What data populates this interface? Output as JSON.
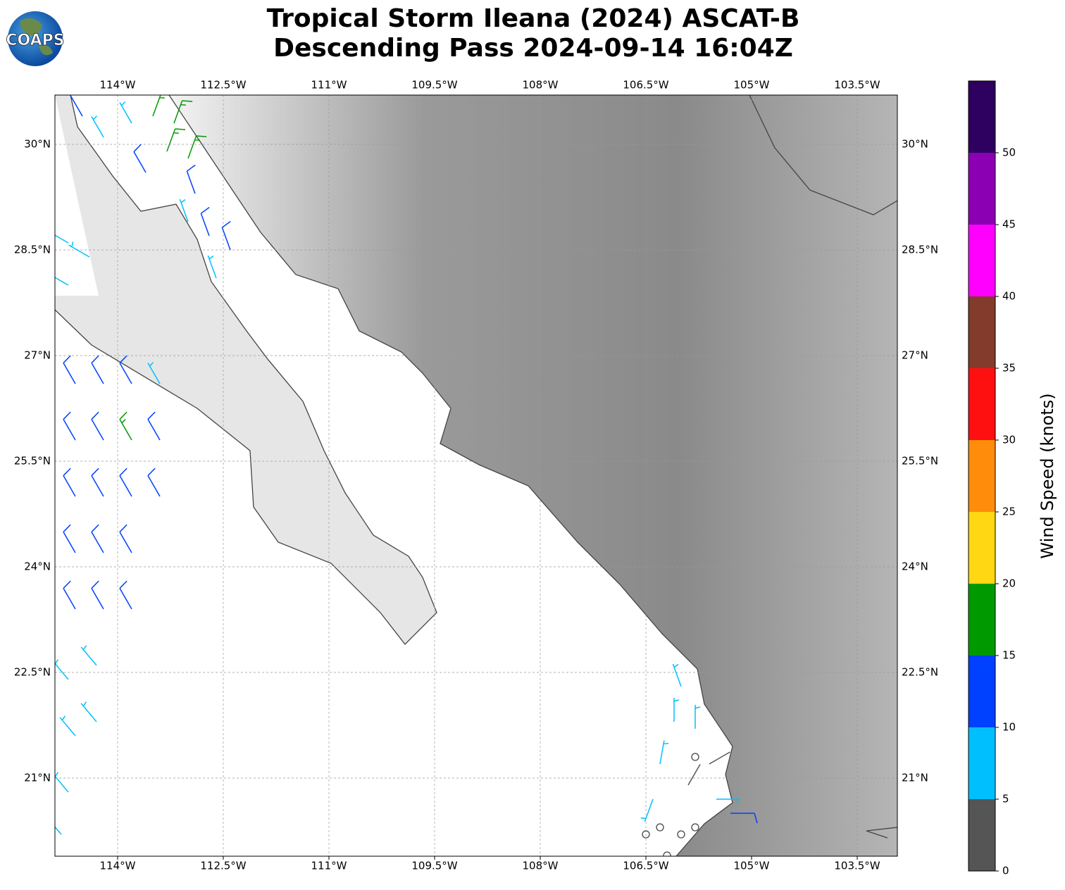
{
  "chart_data": {
    "type": "wind_barbs",
    "title": "Tropical Storm Ileana (2024) ASCAT-B",
    "subtitle": "Descending Pass 2024-09-14 16:04Z",
    "logo": "COAPS",
    "xlim": [
      -114.89,
      -102.93
    ],
    "ylim": [
      19.89,
      30.7
    ],
    "xticks": [
      {
        "value": -114,
        "label": "114°W"
      },
      {
        "value": -112.5,
        "label": "112.5°W"
      },
      {
        "value": -111,
        "label": "111°W"
      },
      {
        "value": -109.5,
        "label": "109.5°W"
      },
      {
        "value": -108,
        "label": "108°W"
      },
      {
        "value": -106.5,
        "label": "106.5°W"
      },
      {
        "value": -105,
        "label": "105°W"
      },
      {
        "value": -103.5,
        "label": "103.5°W"
      }
    ],
    "yticks": [
      {
        "value": 21,
        "label": "21°N"
      },
      {
        "value": 22.5,
        "label": "22.5°N"
      },
      {
        "value": 24,
        "label": "24°N"
      },
      {
        "value": 25.5,
        "label": "25.5°N"
      },
      {
        "value": 27,
        "label": "27°N"
      },
      {
        "value": 28.5,
        "label": "28.5°N"
      },
      {
        "value": 30,
        "label": "30°N"
      }
    ],
    "grid": true,
    "colorbar": {
      "label": "Wind Speed (knots)",
      "lim": [
        0,
        55
      ],
      "ticks": [
        0,
        5,
        10,
        15,
        20,
        25,
        30,
        35,
        40,
        45,
        50
      ],
      "colors": [
        "#555555",
        "#00bfff",
        "#0040ff",
        "#009900",
        "#ffd712",
        "#ff8c0a",
        "#ff1010",
        "#833b2b",
        "#ff00ff",
        "#8c00b4",
        "#2e0060"
      ]
    },
    "barbs": {
      "lon": [
        -114.5,
        -114.2,
        -113.8,
        -113.5,
        -113.2,
        -113.3,
        -113.0,
        -113.6,
        -112.9,
        -113.0,
        -112.7,
        -112.4,
        -112.6,
        -114.7,
        -114.4,
        -114.7,
        -114.6,
        -114.2,
        -113.8,
        -113.4,
        -114.6,
        -114.2,
        -113.8,
        -113.4,
        -114.6,
        -114.2,
        -113.8,
        -113.4,
        -114.6,
        -114.2,
        -113.8,
        -114.6,
        -114.2,
        -113.8,
        -114.7,
        -114.3,
        -114.6,
        -114.3,
        -114.7,
        -114.8,
        -106.0,
        -106.1,
        -105.8,
        -106.3,
        -106.4,
        -105.5,
        -105.3,
        -105.9,
        -105.6,
        -106.5,
        -106.3,
        -106.0,
        -105.8,
        -105.8,
        -106.2
      ],
      "lat": [
        30.4,
        30.1,
        30.3,
        30.4,
        30.3,
        29.9,
        29.8,
        29.6,
        29.3,
        28.9,
        28.7,
        28.5,
        28.1,
        28.6,
        28.4,
        28.0,
        26.6,
        26.6,
        26.6,
        26.6,
        25.8,
        25.8,
        25.8,
        25.8,
        25.0,
        25.0,
        25.0,
        25.0,
        24.2,
        24.2,
        24.2,
        23.4,
        23.4,
        23.4,
        22.4,
        22.6,
        21.6,
        21.8,
        20.8,
        20.2,
        22.3,
        21.8,
        21.7,
        21.2,
        20.7,
        20.7,
        20.5,
        20.9,
        21.2,
        20.2,
        20.3,
        20.2,
        21.3,
        20.3,
        19.9
      ],
      "speed": [
        12,
        8,
        8,
        17,
        17,
        17,
        17,
        12,
        12,
        8,
        12,
        12,
        8,
        8,
        8,
        8,
        12,
        12,
        12,
        8,
        12,
        12,
        16,
        12,
        12,
        12,
        12,
        12,
        12,
        12,
        12,
        12,
        12,
        12,
        8,
        8,
        8,
        7,
        6,
        9,
        7,
        7,
        8,
        7,
        8,
        9,
        12,
        3,
        3,
        0,
        0,
        0,
        0,
        0,
        0
      ],
      "direction": [
        330,
        330,
        330,
        20,
        20,
        20,
        20,
        330,
        340,
        340,
        340,
        340,
        340,
        300,
        300,
        300,
        330,
        330,
        330,
        330,
        330,
        330,
        330,
        330,
        330,
        330,
        330,
        330,
        330,
        330,
        330,
        330,
        330,
        330,
        320,
        320,
        320,
        320,
        320,
        320,
        340,
        0,
        0,
        10,
        200,
        90,
        90,
        30,
        60,
        0,
        0,
        0,
        0,
        0,
        0
      ]
    }
  }
}
